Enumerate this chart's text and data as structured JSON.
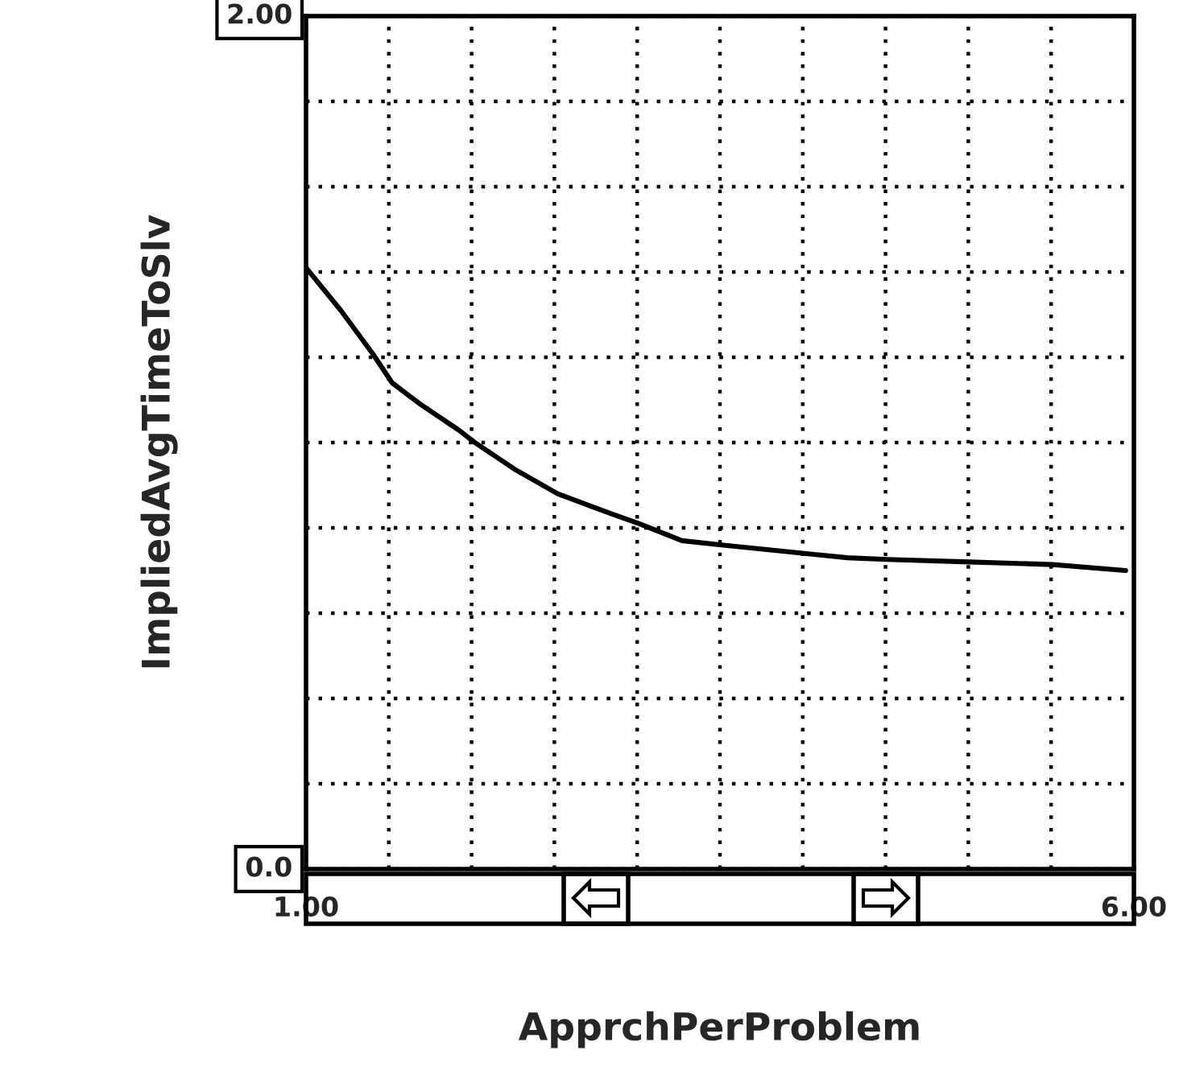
{
  "chart_data": {
    "type": "line",
    "xlabel": "ApprchPerProblem",
    "ylabel": "ImpliedAvgTimeToSlv",
    "x": [
      1.0,
      1.21,
      1.4,
      1.52,
      1.69,
      1.92,
      2.02,
      2.27,
      2.52,
      2.76,
      3.01,
      3.27,
      3.51,
      3.76,
      4.01,
      4.27,
      4.51,
      5.01,
      5.51,
      5.95
    ],
    "series": [
      {
        "color": "#000000",
        "values": [
          1.41,
          1.31,
          1.21,
          1.14,
          1.09,
          1.03,
          1.0,
          0.935,
          0.88,
          0.845,
          0.81,
          0.77,
          0.76,
          0.75,
          0.74,
          0.73,
          0.726,
          0.72,
          0.714,
          0.7
        ]
      }
    ],
    "xlim": [
      1,
      6
    ],
    "ylim": [
      0,
      2
    ],
    "xticks": [
      {
        "value": 1,
        "label": "1.00"
      },
      {
        "value": 1.5,
        "label": null
      },
      {
        "value": 2,
        "label": null
      },
      {
        "value": 2.5,
        "label": null
      },
      {
        "value": 3,
        "label": null
      },
      {
        "value": 3.5,
        "label": null
      },
      {
        "value": 4,
        "label": null
      },
      {
        "value": 4.5,
        "label": null
      },
      {
        "value": 5,
        "label": null
      },
      {
        "value": 5.5,
        "label": null
      },
      {
        "value": 6,
        "label": "6.00"
      }
    ],
    "yticks": [
      {
        "value": 0,
        "label": "0.0"
      },
      {
        "value": 0.2,
        "label": null
      },
      {
        "value": 0.4,
        "label": null
      },
      {
        "value": 0.6,
        "label": null
      },
      {
        "value": 0.8,
        "label": null
      },
      {
        "value": 1.0,
        "label": null
      },
      {
        "value": 1.2,
        "label": null
      },
      {
        "value": 1.4,
        "label": null
      },
      {
        "value": 1.6,
        "label": null
      },
      {
        "value": 1.8,
        "label": null
      },
      {
        "value": 2,
        "label": "2.00"
      }
    ],
    "grid": true,
    "line_style": "solid",
    "marker": "none"
  }
}
